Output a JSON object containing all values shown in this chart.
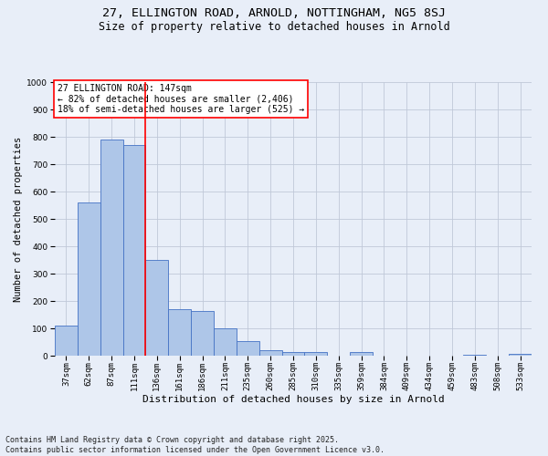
{
  "title1": "27, ELLINGTON ROAD, ARNOLD, NOTTINGHAM, NG5 8SJ",
  "title2": "Size of property relative to detached houses in Arnold",
  "xlabel": "Distribution of detached houses by size in Arnold",
  "ylabel": "Number of detached properties",
  "categories": [
    "37sqm",
    "62sqm",
    "87sqm",
    "111sqm",
    "136sqm",
    "161sqm",
    "186sqm",
    "211sqm",
    "235sqm",
    "260sqm",
    "285sqm",
    "310sqm",
    "335sqm",
    "359sqm",
    "384sqm",
    "409sqm",
    "434sqm",
    "459sqm",
    "483sqm",
    "508sqm",
    "533sqm"
  ],
  "values": [
    110,
    560,
    790,
    770,
    350,
    170,
    165,
    100,
    55,
    20,
    15,
    12,
    0,
    12,
    0,
    0,
    0,
    0,
    5,
    0,
    8
  ],
  "bar_color": "#aec6e8",
  "bar_edge_color": "#4472c4",
  "vline_bar_index": 4,
  "vline_color": "red",
  "annotation_line1": "27 ELLINGTON ROAD: 147sqm",
  "annotation_line2": "← 82% of detached houses are smaller (2,406)",
  "annotation_line3": "18% of semi-detached houses are larger (525) →",
  "annotation_box_facecolor": "white",
  "annotation_box_edgecolor": "red",
  "ylim": [
    0,
    1000
  ],
  "yticks": [
    0,
    100,
    200,
    300,
    400,
    500,
    600,
    700,
    800,
    900,
    1000
  ],
  "grid_color": "#c0c8d8",
  "background_color": "#e8eef8",
  "footer": "Contains HM Land Registry data © Crown copyright and database right 2025.\nContains public sector information licensed under the Open Government Licence v3.0.",
  "title1_fontsize": 9.5,
  "title2_fontsize": 8.5,
  "xlabel_fontsize": 8,
  "ylabel_fontsize": 7.5,
  "tick_fontsize": 6.5,
  "footer_fontsize": 6,
  "annotation_fontsize": 7
}
